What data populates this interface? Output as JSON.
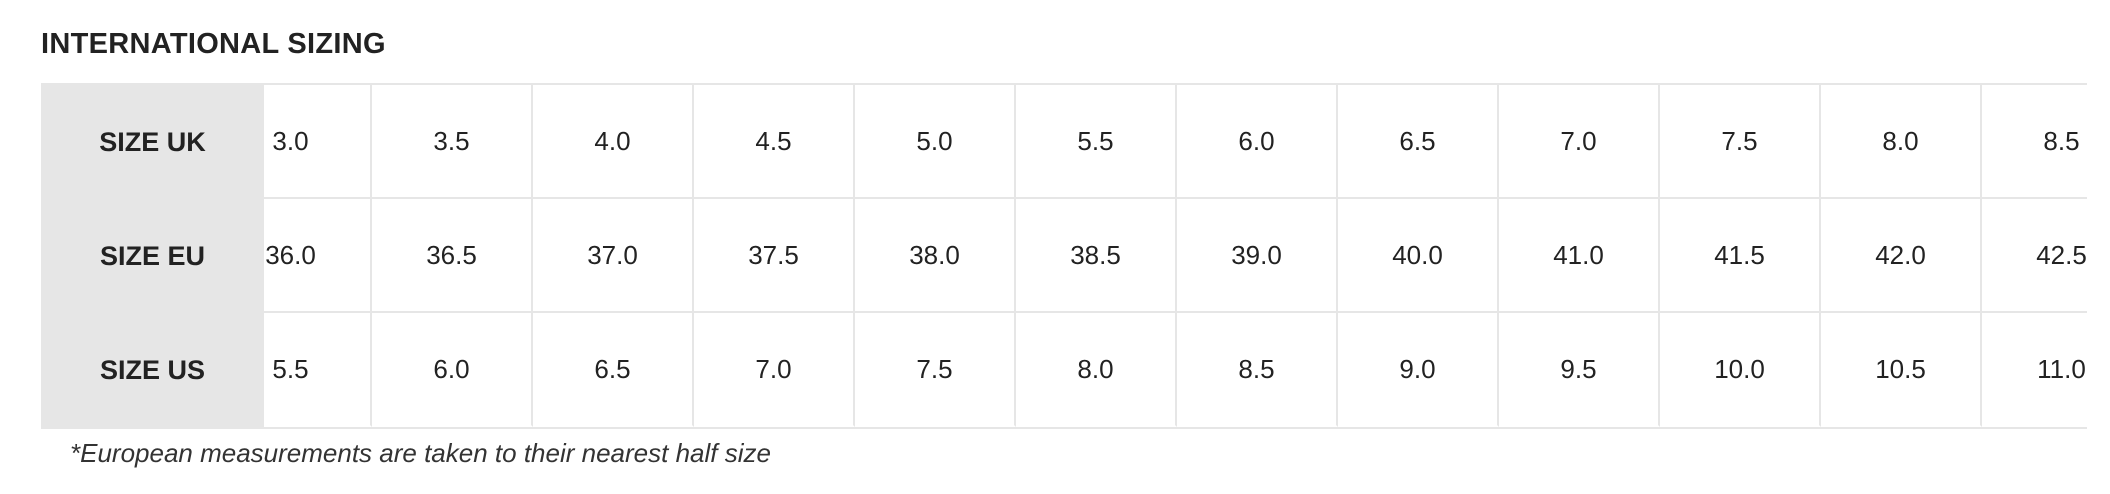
{
  "title": "INTERNATIONAL SIZING",
  "table": {
    "rows": [
      {
        "label": "SIZE UK",
        "values": [
          "3.0",
          "3.5",
          "4.0",
          "4.5",
          "5.0",
          "5.5",
          "6.0",
          "6.5",
          "7.0",
          "7.5",
          "8.0",
          "8.5"
        ]
      },
      {
        "label": "SIZE EU",
        "values": [
          "36.0",
          "36.5",
          "37.0",
          "37.5",
          "38.0",
          "38.5",
          "39.0",
          "40.0",
          "41.0",
          "41.5",
          "42.0",
          "42.5"
        ]
      },
      {
        "label": "SIZE US",
        "values": [
          "5.5",
          "6.0",
          "6.5",
          "7.0",
          "7.5",
          "8.0",
          "8.5",
          "9.0",
          "9.5",
          "10.0",
          "10.5",
          "11.0"
        ]
      }
    ]
  },
  "footnote": "*European measurements are taken to their nearest half size"
}
